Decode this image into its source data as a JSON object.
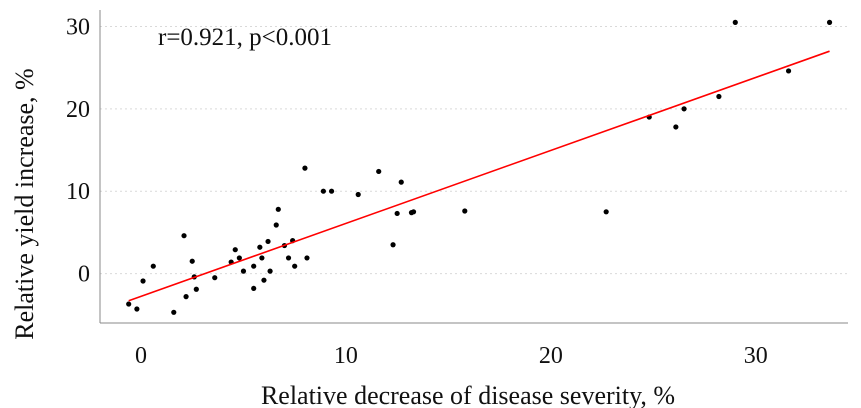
{
  "chart_data": {
    "type": "scatter",
    "xlabel": "Relative decrease of disease severity, %",
    "ylabel": "Relative yield increase, %",
    "annotation": "r=0.921, p<0.001",
    "xlim": [
      -2,
      34.5
    ],
    "ylim": [
      -6,
      32
    ],
    "xticks": [
      0,
      10,
      20,
      30
    ],
    "yticks": [
      0,
      10,
      20,
      30
    ],
    "grid": "horizontal-dotted",
    "colors": {
      "points": "#000000",
      "fit_line": "#ff0000",
      "grid": "#d9d9d9",
      "axis": "#888888"
    },
    "points": {
      "x": [
        -0.6,
        -0.2,
        0.1,
        0.6,
        1.6,
        2.1,
        2.2,
        2.5,
        2.6,
        2.7,
        3.6,
        4.4,
        4.6,
        4.8,
        5.0,
        5.5,
        5.5,
        5.8,
        5.9,
        6.0,
        6.2,
        6.3,
        6.6,
        6.7,
        7.0,
        7.2,
        7.4,
        7.5,
        8.0,
        8.1,
        8.9,
        9.3,
        10.6,
        11.6,
        12.3,
        12.5,
        12.7,
        13.2,
        13.3,
        15.8,
        22.7,
        24.8,
        26.1,
        26.5,
        28.2,
        29.0,
        31.6,
        33.6
      ],
      "y": [
        -3.7,
        -4.3,
        -0.9,
        0.9,
        -4.7,
        4.6,
        -2.8,
        1.5,
        -0.4,
        -1.9,
        -0.5,
        1.4,
        2.9,
        1.9,
        0.3,
        0.9,
        -1.8,
        3.2,
        1.9,
        -0.8,
        3.9,
        0.3,
        5.9,
        7.8,
        3.4,
        1.9,
        4.0,
        0.9,
        12.8,
        1.9,
        10.0,
        10.0,
        9.6,
        12.4,
        3.5,
        7.3,
        11.1,
        7.4,
        7.5,
        7.6,
        7.5,
        19.0,
        17.8,
        20.0,
        21.5,
        30.5,
        24.6,
        30.5
      ]
    },
    "fit_line": {
      "x": [
        -0.6,
        33.6
      ],
      "y": [
        -3.3,
        27.0
      ]
    }
  }
}
